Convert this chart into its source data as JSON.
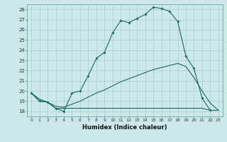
{
  "title": "",
  "xlabel": "Humidex (Indice chaleur)",
  "ylabel": "",
  "xlim": [
    -0.5,
    23.5
  ],
  "ylim": [
    17.5,
    28.5
  ],
  "yticks": [
    18,
    19,
    20,
    21,
    22,
    23,
    24,
    25,
    26,
    27,
    28
  ],
  "xticks": [
    0,
    1,
    2,
    3,
    4,
    5,
    6,
    7,
    8,
    9,
    10,
    11,
    12,
    13,
    14,
    15,
    16,
    17,
    18,
    19,
    20,
    21,
    22,
    23
  ],
  "bg_color": "#cce8ea",
  "grid_color": "#aacccc",
  "line_color": "#1a6b5e",
  "line1_x": [
    0,
    1,
    2,
    3,
    4,
    5,
    6,
    7,
    8,
    9,
    10,
    11,
    12,
    13,
    14,
    15,
    16,
    17,
    18,
    19,
    20,
    21,
    22
  ],
  "line1_y": [
    19.8,
    19.0,
    18.9,
    18.3,
    18.0,
    19.8,
    20.0,
    21.5,
    23.2,
    23.8,
    25.7,
    26.9,
    26.7,
    27.1,
    27.5,
    28.2,
    28.1,
    27.8,
    26.8,
    23.4,
    22.2,
    19.3,
    18.1
  ],
  "line2_x": [
    0,
    1,
    2,
    3,
    4,
    5,
    6,
    7,
    8,
    9,
    10,
    11,
    12,
    13,
    14,
    15,
    16,
    17,
    18,
    19,
    20,
    21,
    22,
    23
  ],
  "line2_y": [
    19.8,
    19.0,
    18.9,
    18.3,
    18.3,
    18.3,
    18.3,
    18.3,
    18.3,
    18.3,
    18.3,
    18.3,
    18.3,
    18.3,
    18.3,
    18.3,
    18.3,
    18.3,
    18.3,
    18.3,
    18.3,
    18.3,
    18.1,
    18.1
  ],
  "line3_x": [
    0,
    1,
    2,
    3,
    4,
    5,
    6,
    7,
    8,
    9,
    10,
    11,
    12,
    13,
    14,
    15,
    16,
    17,
    18,
    19,
    20,
    21,
    22,
    23
  ],
  "line3_y": [
    19.8,
    19.2,
    18.9,
    18.5,
    18.4,
    18.7,
    19.0,
    19.4,
    19.8,
    20.1,
    20.5,
    20.9,
    21.2,
    21.5,
    21.8,
    22.1,
    22.3,
    22.5,
    22.7,
    22.4,
    21.3,
    20.0,
    18.8,
    18.1
  ]
}
